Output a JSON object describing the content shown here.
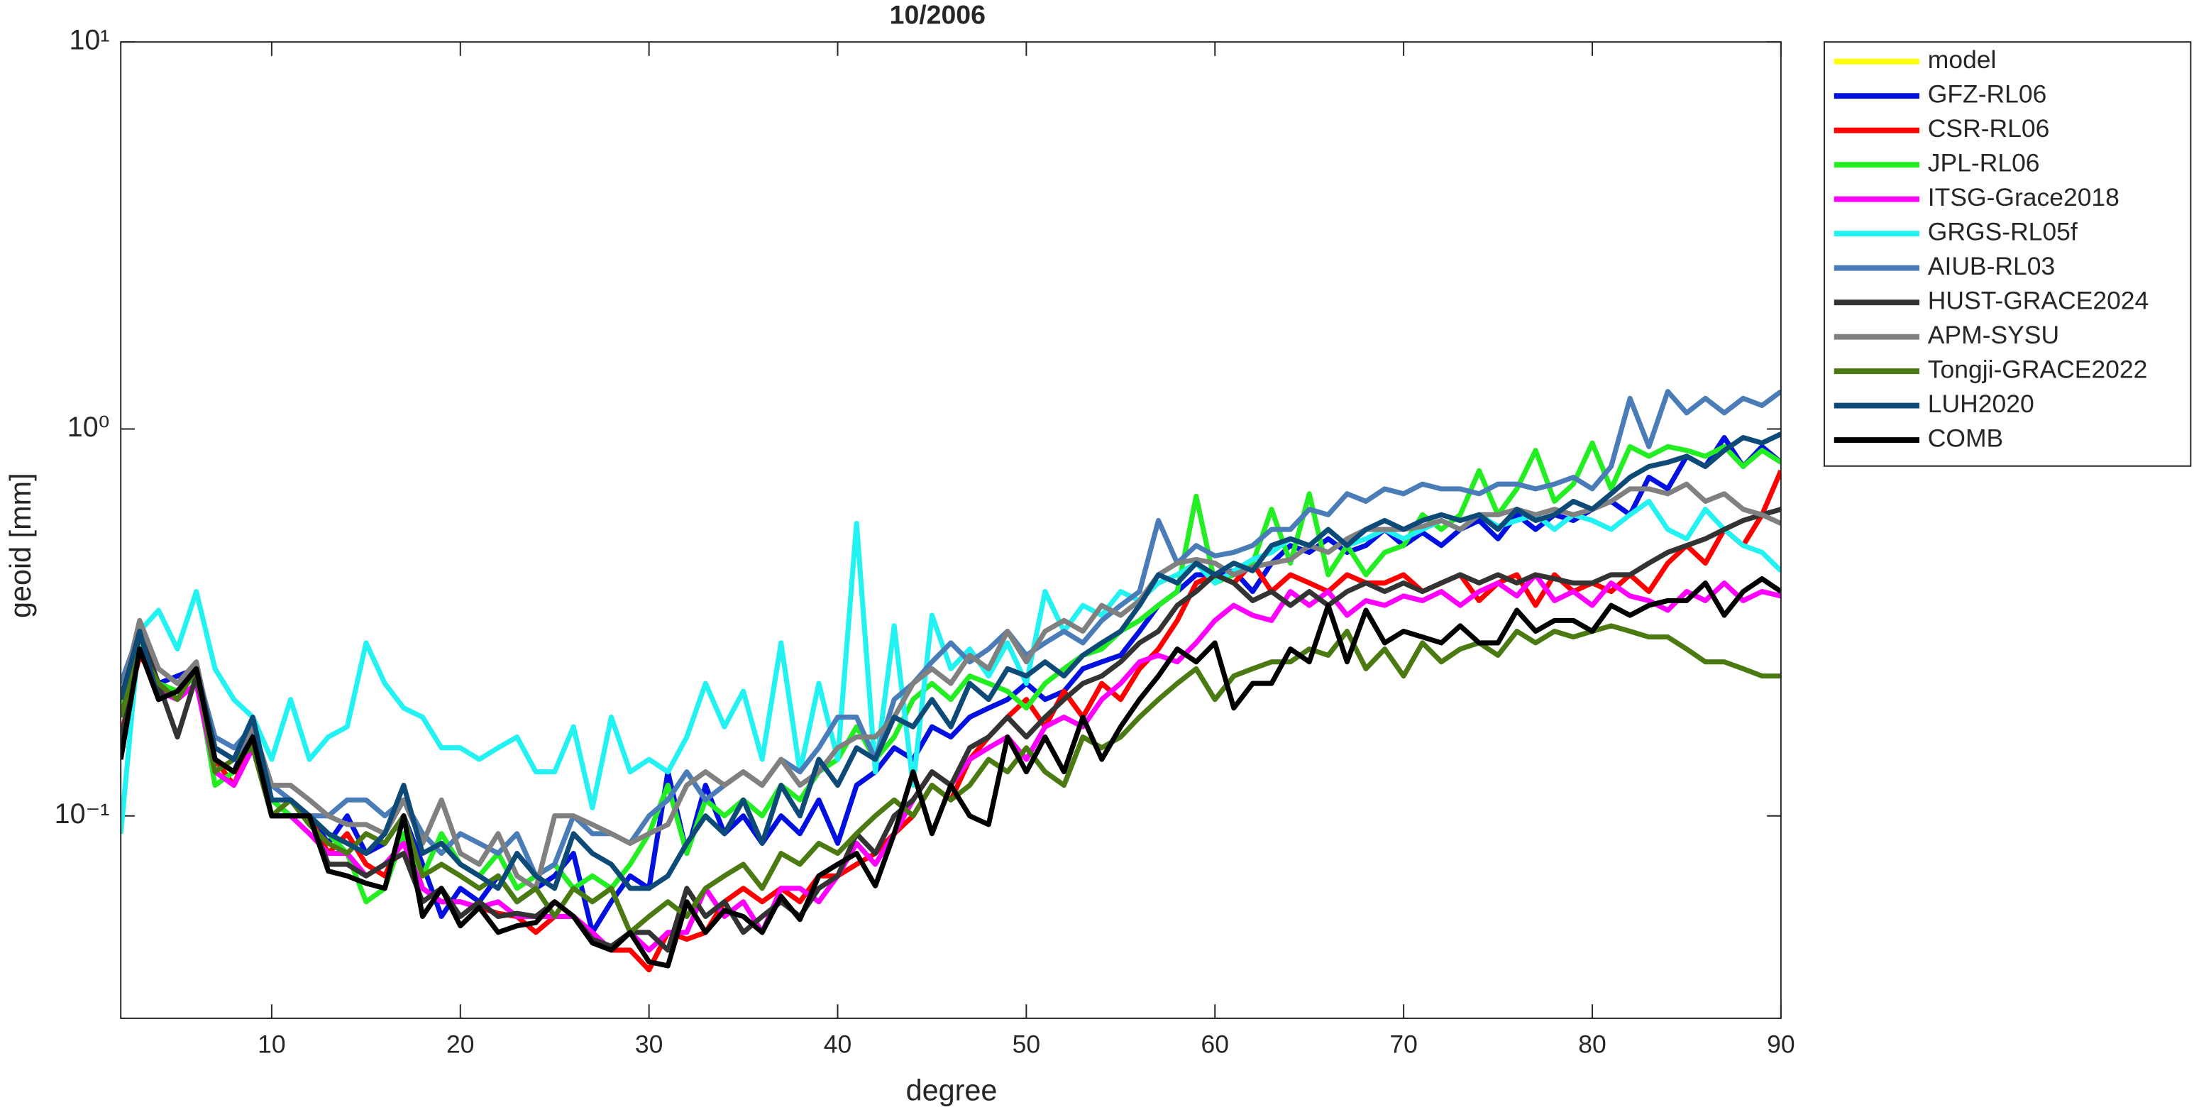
{
  "chart_data": {
    "type": "line",
    "title": "10/2006",
    "xlabel": "degree",
    "ylabel": "geoid [mm]",
    "log_y": true,
    "legend": "outside-right",
    "xlim": [
      2,
      90
    ],
    "xticks": [
      10,
      20,
      30,
      40,
      50,
      60,
      70,
      80,
      90
    ],
    "ylim": [
      0.03,
      10
    ],
    "yticks": [
      {
        "value": 0.1,
        "label": "10⁻¹"
      },
      {
        "value": 1,
        "label": "10⁰"
      },
      {
        "value": 10,
        "label": "10¹"
      }
    ],
    "x": [
      2,
      3,
      4,
      5,
      6,
      7,
      8,
      9,
      10,
      11,
      12,
      13,
      14,
      15,
      16,
      17,
      18,
      19,
      20,
      21,
      22,
      23,
      24,
      25,
      26,
      27,
      28,
      29,
      30,
      31,
      32,
      33,
      34,
      35,
      36,
      37,
      38,
      39,
      40,
      41,
      42,
      43,
      44,
      45,
      46,
      47,
      48,
      49,
      50,
      51,
      52,
      53,
      54,
      55,
      56,
      57,
      58,
      59,
      60,
      61,
      62,
      63,
      64,
      65,
      66,
      67,
      68,
      69,
      70,
      71,
      72,
      73,
      74,
      75,
      76,
      77,
      78,
      79,
      80,
      81,
      82,
      83,
      84,
      85,
      86,
      87,
      88,
      89,
      90
    ],
    "series": [
      {
        "name": "model",
        "color": "#ffff00",
        "values": [
          null,
          null,
          null,
          null,
          null,
          null,
          null,
          null,
          null,
          null,
          null,
          null,
          null,
          null,
          null,
          null,
          null,
          null,
          null,
          null,
          null,
          null,
          null,
          null,
          null,
          null,
          null,
          null,
          null,
          null,
          null,
          null,
          null,
          null,
          null,
          null,
          null,
          null,
          null,
          null,
          null,
          null,
          null,
          null,
          null,
          null,
          null,
          null,
          null,
          null,
          null,
          null,
          null,
          null,
          null,
          null,
          null,
          null,
          null,
          null,
          null,
          null,
          null,
          null,
          null,
          null,
          null,
          null,
          null,
          null,
          null,
          null,
          null,
          null,
          null,
          null,
          null,
          null,
          null,
          null,
          null,
          null,
          null,
          null,
          null,
          null,
          null,
          null,
          null
        ]
      },
      {
        "name": "GFZ-RL06",
        "color": "#0010e0",
        "values": [
          0.2,
          0.28,
          0.22,
          0.23,
          0.24,
          0.14,
          0.13,
          0.17,
          0.11,
          0.1,
          0.1,
          0.085,
          0.1,
          0.08,
          0.085,
          0.1,
          0.075,
          0.055,
          0.065,
          0.06,
          0.07,
          0.06,
          0.065,
          0.07,
          0.08,
          0.05,
          0.06,
          0.07,
          0.065,
          0.13,
          0.08,
          0.12,
          0.09,
          0.1,
          0.085,
          0.1,
          0.09,
          0.11,
          0.085,
          0.12,
          0.13,
          0.15,
          0.14,
          0.17,
          0.16,
          0.18,
          0.19,
          0.2,
          0.22,
          0.2,
          0.21,
          0.24,
          0.25,
          0.26,
          0.3,
          0.35,
          0.38,
          0.42,
          0.42,
          0.43,
          0.38,
          0.45,
          0.5,
          0.48,
          0.52,
          0.48,
          0.5,
          0.55,
          0.5,
          0.54,
          0.5,
          0.55,
          0.58,
          0.52,
          0.6,
          0.55,
          0.6,
          0.58,
          0.62,
          0.65,
          0.6,
          0.75,
          0.7,
          0.85,
          0.8,
          0.95,
          0.8,
          0.9,
          0.82
        ]
      },
      {
        "name": "CSR-RL06",
        "color": "#ff0000",
        "values": [
          0.16,
          0.26,
          0.22,
          0.21,
          0.24,
          0.14,
          0.12,
          0.16,
          0.1,
          0.1,
          0.1,
          0.08,
          0.09,
          0.075,
          0.07,
          0.09,
          0.065,
          0.06,
          0.06,
          0.058,
          0.056,
          0.055,
          0.05,
          0.055,
          0.055,
          0.05,
          0.045,
          0.045,
          0.04,
          0.05,
          0.048,
          0.05,
          0.06,
          0.065,
          0.06,
          0.065,
          0.06,
          0.07,
          0.07,
          0.075,
          0.08,
          0.09,
          0.1,
          0.12,
          0.11,
          0.14,
          0.16,
          0.18,
          0.2,
          0.17,
          0.21,
          0.18,
          0.22,
          0.2,
          0.24,
          0.27,
          0.32,
          0.4,
          0.42,
          0.4,
          0.45,
          0.38,
          0.42,
          0.4,
          0.38,
          0.42,
          0.4,
          0.4,
          0.42,
          0.38,
          0.4,
          0.42,
          0.36,
          0.4,
          0.42,
          0.35,
          0.42,
          0.38,
          0.4,
          0.38,
          0.42,
          0.38,
          0.45,
          0.5,
          0.45,
          0.55,
          0.5,
          0.6,
          0.78
        ]
      },
      {
        "name": "JPL-RL06",
        "color": "#22ee22",
        "values": [
          0.19,
          0.28,
          0.22,
          0.21,
          0.23,
          0.12,
          0.13,
          0.16,
          0.11,
          0.1,
          0.1,
          0.09,
          0.08,
          0.06,
          0.065,
          0.09,
          0.07,
          0.09,
          0.075,
          0.07,
          0.08,
          0.065,
          0.07,
          0.075,
          0.065,
          0.07,
          0.065,
          0.075,
          0.09,
          0.12,
          0.08,
          0.11,
          0.1,
          0.11,
          0.1,
          0.12,
          0.11,
          0.13,
          0.14,
          0.17,
          0.14,
          0.16,
          0.2,
          0.22,
          0.2,
          0.23,
          0.22,
          0.21,
          0.19,
          0.22,
          0.24,
          0.26,
          0.27,
          0.3,
          0.32,
          0.35,
          0.38,
          0.67,
          0.4,
          0.42,
          0.45,
          0.62,
          0.45,
          0.68,
          0.42,
          0.5,
          0.42,
          0.48,
          0.5,
          0.6,
          0.55,
          0.6,
          0.78,
          0.6,
          0.7,
          0.88,
          0.65,
          0.72,
          0.92,
          0.7,
          0.9,
          0.85,
          0.9,
          0.88,
          0.85,
          0.9,
          0.8,
          0.88,
          0.82
        ]
      },
      {
        "name": "ITSG-Grace2018",
        "color": "#ff00ff",
        "values": [
          0.15,
          0.27,
          0.21,
          0.2,
          0.22,
          0.13,
          0.12,
          0.15,
          0.1,
          0.1,
          0.09,
          0.08,
          0.08,
          0.07,
          0.075,
          0.085,
          0.065,
          0.06,
          0.06,
          0.058,
          0.06,
          0.055,
          0.055,
          0.055,
          0.055,
          0.05,
          0.045,
          0.05,
          0.045,
          0.05,
          0.05,
          0.065,
          0.055,
          0.06,
          0.05,
          0.065,
          0.065,
          0.06,
          0.07,
          0.085,
          0.075,
          0.09,
          0.11,
          0.13,
          0.12,
          0.14,
          0.15,
          0.16,
          0.14,
          0.17,
          0.18,
          0.17,
          0.2,
          0.22,
          0.25,
          0.26,
          0.25,
          0.28,
          0.32,
          0.35,
          0.33,
          0.32,
          0.38,
          0.35,
          0.38,
          0.33,
          0.36,
          0.35,
          0.37,
          0.36,
          0.38,
          0.35,
          0.38,
          0.4,
          0.37,
          0.42,
          0.36,
          0.38,
          0.35,
          0.4,
          0.37,
          0.36,
          0.34,
          0.38,
          0.36,
          0.4,
          0.36,
          0.38,
          0.37
        ]
      },
      {
        "name": "GRGS-RL05f",
        "color": "#22f2f2",
        "values": [
          0.09,
          0.3,
          0.34,
          0.27,
          0.38,
          0.24,
          0.2,
          0.18,
          0.14,
          0.2,
          0.14,
          0.16,
          0.17,
          0.28,
          0.22,
          0.19,
          0.18,
          0.15,
          0.15,
          0.14,
          0.15,
          0.16,
          0.13,
          0.13,
          0.17,
          0.105,
          0.18,
          0.13,
          0.14,
          0.13,
          0.16,
          0.22,
          0.17,
          0.21,
          0.14,
          0.28,
          0.13,
          0.22,
          0.14,
          0.57,
          0.13,
          0.31,
          0.12,
          0.33,
          0.24,
          0.27,
          0.23,
          0.28,
          0.22,
          0.38,
          0.3,
          0.35,
          0.33,
          0.38,
          0.36,
          0.4,
          0.42,
          0.45,
          0.4,
          0.43,
          0.46,
          0.48,
          0.52,
          0.5,
          0.55,
          0.5,
          0.52,
          0.55,
          0.52,
          0.55,
          0.58,
          0.55,
          0.6,
          0.56,
          0.58,
          0.6,
          0.55,
          0.6,
          0.58,
          0.55,
          0.6,
          0.65,
          0.55,
          0.52,
          0.62,
          0.55,
          0.5,
          0.48,
          0.43
        ]
      },
      {
        "name": "AIUB-RL03",
        "color": "#4a7db8",
        "values": [
          0.22,
          0.3,
          0.24,
          0.22,
          0.24,
          0.16,
          0.15,
          0.17,
          0.12,
          0.11,
          0.1,
          0.1,
          0.11,
          0.11,
          0.1,
          0.11,
          0.09,
          0.08,
          0.09,
          0.085,
          0.08,
          0.09,
          0.07,
          0.075,
          0.1,
          0.09,
          0.09,
          0.085,
          0.1,
          0.11,
          0.13,
          0.11,
          0.12,
          0.13,
          0.12,
          0.14,
          0.13,
          0.15,
          0.18,
          0.18,
          0.14,
          0.2,
          0.22,
          0.25,
          0.28,
          0.25,
          0.27,
          0.3,
          0.26,
          0.28,
          0.3,
          0.28,
          0.32,
          0.35,
          0.38,
          0.58,
          0.45,
          0.5,
          0.47,
          0.48,
          0.5,
          0.55,
          0.55,
          0.62,
          0.6,
          0.68,
          0.65,
          0.7,
          0.68,
          0.72,
          0.7,
          0.7,
          0.68,
          0.72,
          0.72,
          0.7,
          0.72,
          0.75,
          0.7,
          0.8,
          1.2,
          0.9,
          1.25,
          1.1,
          1.2,
          1.1,
          1.2,
          1.15,
          1.25
        ]
      },
      {
        "name": "HUST-GRACE2024",
        "color": "#333333",
        "values": [
          0.15,
          0.3,
          0.22,
          0.16,
          0.23,
          0.14,
          0.13,
          0.16,
          0.1,
          0.1,
          0.1,
          0.075,
          0.075,
          0.07,
          0.075,
          0.08,
          0.06,
          0.065,
          0.055,
          0.06,
          0.055,
          0.056,
          0.055,
          0.06,
          0.055,
          0.048,
          0.046,
          0.05,
          0.05,
          0.045,
          0.065,
          0.055,
          0.06,
          0.05,
          0.055,
          0.06,
          0.055,
          0.065,
          0.07,
          0.09,
          0.08,
          0.1,
          0.11,
          0.13,
          0.12,
          0.15,
          0.16,
          0.18,
          0.16,
          0.18,
          0.2,
          0.22,
          0.23,
          0.25,
          0.28,
          0.3,
          0.35,
          0.38,
          0.42,
          0.4,
          0.36,
          0.38,
          0.35,
          0.38,
          0.35,
          0.38,
          0.4,
          0.38,
          0.4,
          0.38,
          0.4,
          0.42,
          0.4,
          0.42,
          0.4,
          0.42,
          0.41,
          0.4,
          0.4,
          0.42,
          0.42,
          0.45,
          0.48,
          0.5,
          0.52,
          0.55,
          0.58,
          0.6,
          0.62
        ]
      },
      {
        "name": "APM-SYSU",
        "color": "#808080",
        "values": [
          0.2,
          0.32,
          0.24,
          0.22,
          0.25,
          0.15,
          0.14,
          0.17,
          0.12,
          0.12,
          0.11,
          0.1,
          0.095,
          0.095,
          0.09,
          0.11,
          0.085,
          0.11,
          0.08,
          0.075,
          0.09,
          0.07,
          0.065,
          0.1,
          0.1,
          0.095,
          0.09,
          0.085,
          0.09,
          0.095,
          0.12,
          0.13,
          0.12,
          0.13,
          0.12,
          0.14,
          0.12,
          0.13,
          0.15,
          0.16,
          0.16,
          0.18,
          0.22,
          0.24,
          0.22,
          0.26,
          0.24,
          0.3,
          0.25,
          0.3,
          0.32,
          0.3,
          0.35,
          0.33,
          0.36,
          0.42,
          0.45,
          0.46,
          0.45,
          0.42,
          0.44,
          0.45,
          0.46,
          0.5,
          0.48,
          0.52,
          0.55,
          0.55,
          0.55,
          0.56,
          0.58,
          0.55,
          0.6,
          0.6,
          0.62,
          0.6,
          0.62,
          0.6,
          0.62,
          0.65,
          0.7,
          0.7,
          0.68,
          0.72,
          0.65,
          0.68,
          0.62,
          0.6,
          0.57
        ]
      },
      {
        "name": "Tongji-GRACE2022",
        "color": "#4b7a12",
        "values": [
          0.18,
          0.27,
          0.22,
          0.2,
          0.24,
          0.13,
          0.14,
          0.15,
          0.1,
          0.11,
          0.095,
          0.085,
          0.08,
          0.09,
          0.085,
          0.1,
          0.07,
          0.075,
          0.07,
          0.065,
          0.07,
          0.06,
          0.065,
          0.055,
          0.065,
          0.06,
          0.065,
          0.05,
          0.055,
          0.06,
          0.055,
          0.065,
          0.07,
          0.075,
          0.065,
          0.08,
          0.075,
          0.085,
          0.08,
          0.09,
          0.1,
          0.11,
          0.1,
          0.12,
          0.11,
          0.12,
          0.14,
          0.13,
          0.15,
          0.13,
          0.12,
          0.16,
          0.15,
          0.16,
          0.18,
          0.2,
          0.22,
          0.24,
          0.2,
          0.23,
          0.24,
          0.25,
          0.25,
          0.27,
          0.26,
          0.3,
          0.24,
          0.27,
          0.23,
          0.28,
          0.25,
          0.27,
          0.28,
          0.26,
          0.3,
          0.28,
          0.3,
          0.29,
          0.3,
          0.31,
          0.3,
          0.29,
          0.29,
          0.27,
          0.25,
          0.25,
          0.24,
          0.23,
          0.23
        ]
      },
      {
        "name": "LUH2020",
        "color": "#0e4a78",
        "values": [
          0.2,
          0.3,
          0.2,
          0.21,
          0.24,
          0.15,
          0.14,
          0.18,
          0.11,
          0.11,
          0.1,
          0.09,
          0.085,
          0.08,
          0.09,
          0.12,
          0.08,
          0.085,
          0.075,
          0.07,
          0.065,
          0.08,
          0.07,
          0.065,
          0.09,
          0.08,
          0.075,
          0.065,
          0.065,
          0.07,
          0.085,
          0.1,
          0.09,
          0.11,
          0.085,
          0.12,
          0.1,
          0.14,
          0.12,
          0.15,
          0.14,
          0.18,
          0.17,
          0.2,
          0.17,
          0.22,
          0.2,
          0.24,
          0.23,
          0.25,
          0.23,
          0.26,
          0.28,
          0.3,
          0.35,
          0.42,
          0.4,
          0.45,
          0.42,
          0.45,
          0.43,
          0.5,
          0.52,
          0.5,
          0.55,
          0.5,
          0.55,
          0.58,
          0.55,
          0.58,
          0.6,
          0.58,
          0.6,
          0.55,
          0.62,
          0.58,
          0.6,
          0.65,
          0.62,
          0.68,
          0.75,
          0.8,
          0.82,
          0.85,
          0.8,
          0.88,
          0.95,
          0.92,
          0.97
        ]
      },
      {
        "name": "COMB",
        "color": "#000000",
        "values": [
          0.14,
          0.27,
          0.2,
          0.21,
          0.24,
          0.14,
          0.13,
          0.16,
          0.1,
          0.1,
          0.1,
          0.072,
          0.07,
          0.067,
          0.065,
          0.1,
          0.055,
          0.065,
          0.052,
          0.058,
          0.05,
          0.052,
          0.053,
          0.06,
          0.055,
          0.047,
          0.045,
          0.05,
          0.042,
          0.041,
          0.06,
          0.05,
          0.057,
          0.055,
          0.05,
          0.062,
          0.054,
          0.07,
          0.075,
          0.08,
          0.066,
          0.09,
          0.13,
          0.09,
          0.12,
          0.1,
          0.095,
          0.16,
          0.13,
          0.16,
          0.13,
          0.18,
          0.14,
          0.17,
          0.2,
          0.23,
          0.27,
          0.25,
          0.28,
          0.19,
          0.22,
          0.22,
          0.27,
          0.25,
          0.35,
          0.25,
          0.34,
          0.28,
          0.3,
          0.29,
          0.28,
          0.31,
          0.28,
          0.28,
          0.34,
          0.3,
          0.32,
          0.32,
          0.3,
          0.35,
          0.33,
          0.35,
          0.36,
          0.36,
          0.4,
          0.33,
          0.38,
          0.41,
          0.38
        ]
      }
    ]
  }
}
